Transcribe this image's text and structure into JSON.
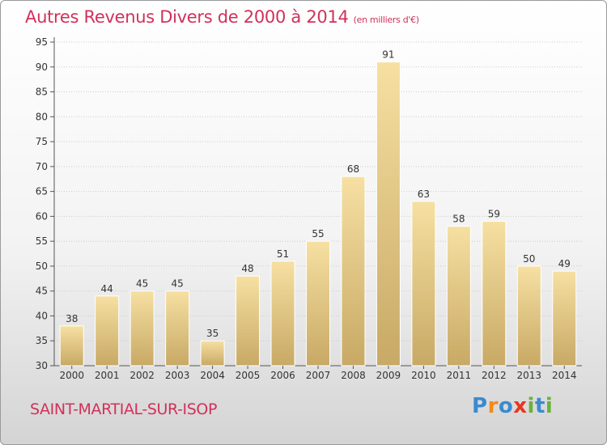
{
  "header": {
    "title": "Autres Revenus Divers de 2000 à 2014",
    "unit": "(en milliers d'€)"
  },
  "footer": {
    "town": "SAINT-MARTIAL-SUR-ISOP",
    "brand": {
      "letters": [
        "P",
        "r",
        "o",
        "x",
        "i",
        "t",
        "i"
      ],
      "colors": [
        "#3a8bd0",
        "#f08a1c",
        "#3a8bd0",
        "#e8351f",
        "#6ab23a",
        "#3a8bd0",
        "#6ab23a"
      ]
    }
  },
  "colors": {
    "title": "#d0315b",
    "bar_light": "#f6e0a2",
    "bar_dark": "#c8a965",
    "grid": "#cccccc"
  },
  "chart_data": {
    "type": "bar",
    "title": "Autres Revenus Divers de 2000 à 2014",
    "subtitle": "(en milliers d'€)",
    "categories": [
      "2000",
      "2001",
      "2002",
      "2003",
      "2004",
      "2005",
      "2006",
      "2007",
      "2008",
      "2009",
      "2010",
      "2011",
      "2012",
      "2013",
      "2014"
    ],
    "values": [
      38,
      44,
      45,
      45,
      35,
      48,
      51,
      55,
      68,
      91,
      63,
      58,
      59,
      50,
      49
    ],
    "ylim": [
      30,
      95
    ],
    "yticks": [
      30,
      35,
      40,
      45,
      50,
      55,
      60,
      65,
      70,
      75,
      80,
      85,
      90,
      95
    ],
    "grid": true,
    "data_labels": true
  }
}
